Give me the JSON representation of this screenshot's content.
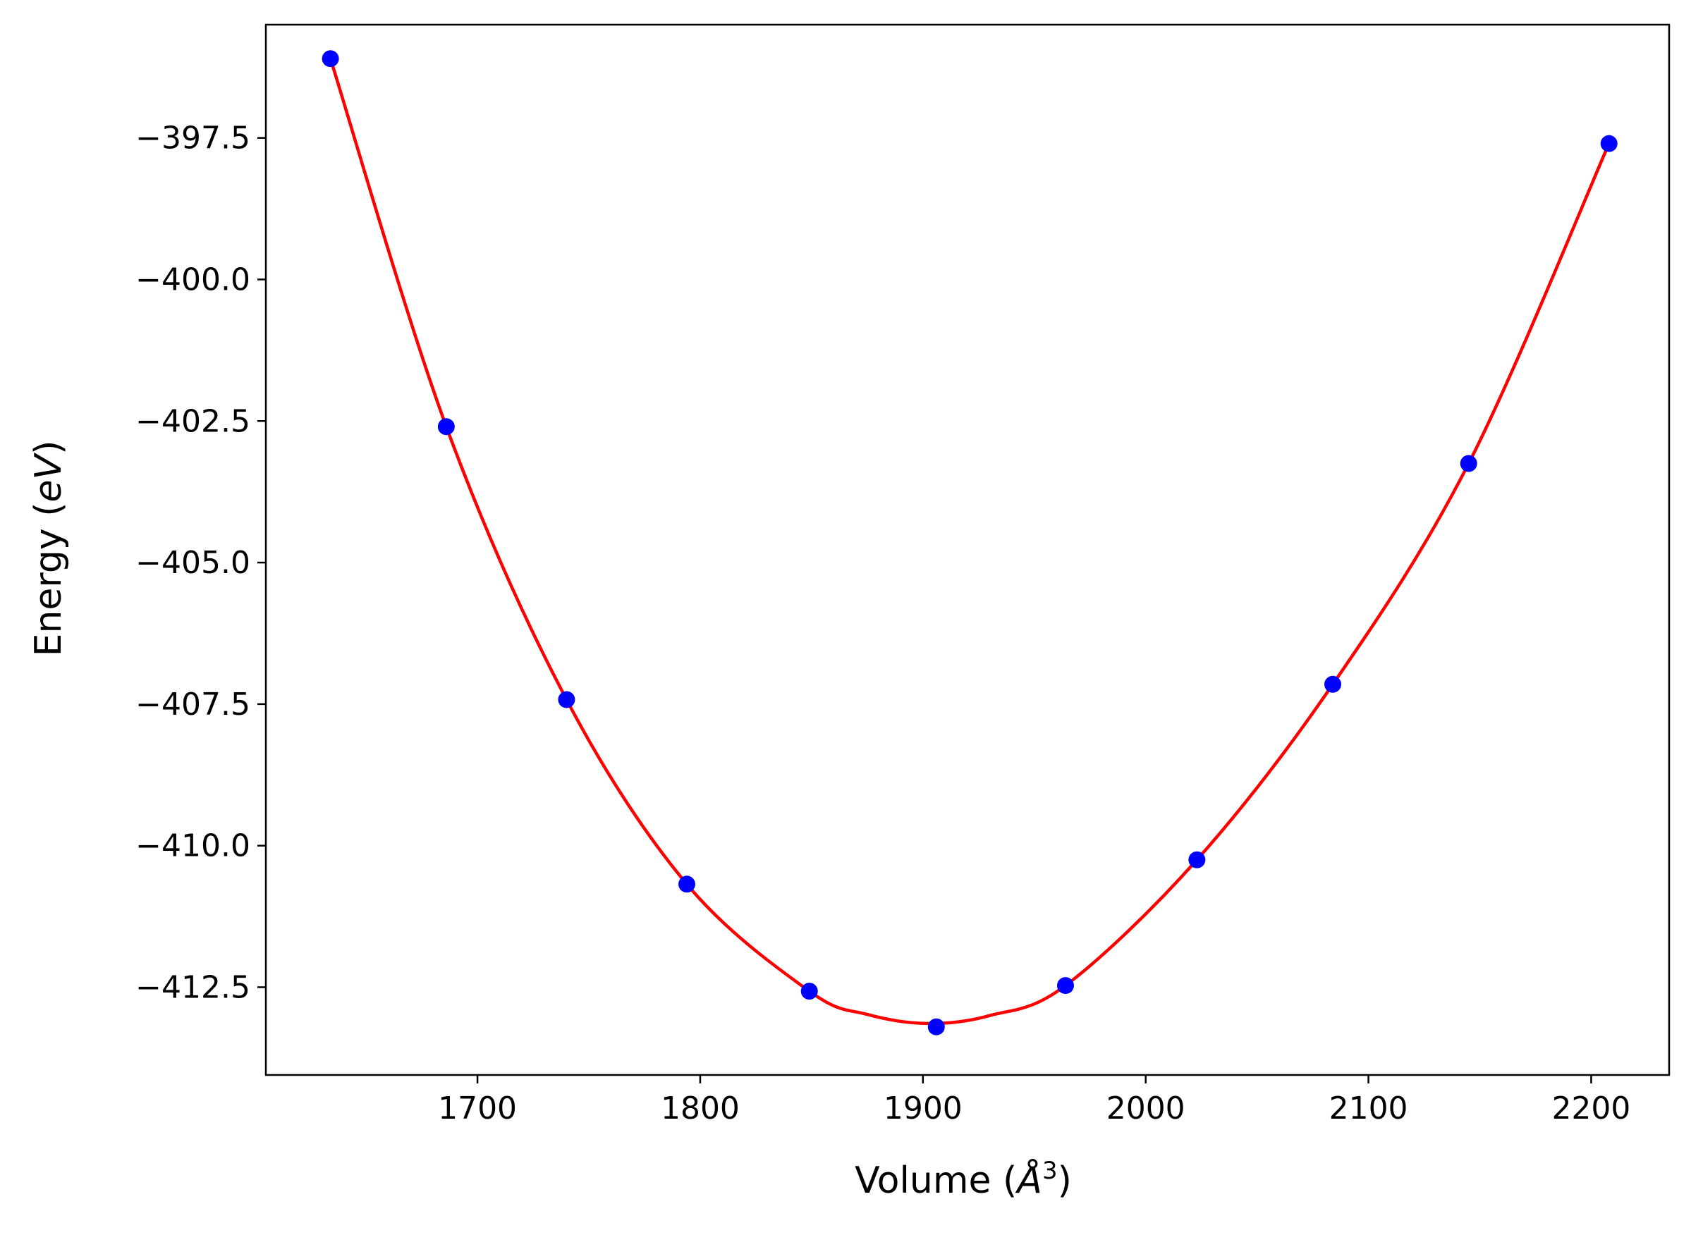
{
  "chart_data": {
    "type": "scatter",
    "title": "",
    "xlabel": "Volume",
    "xlabel_unit": "Å",
    "xlabel_unit_exponent": "3",
    "ylabel": "Energy",
    "ylabel_unit": "eV",
    "xlim": [
      1605,
      2235
    ],
    "ylim": [
      -414.05,
      -395.5
    ],
    "xticks": [
      1700,
      1800,
      1900,
      2000,
      2100,
      2200
    ],
    "xtick_labels": [
      "1700",
      "1800",
      "1900",
      "2000",
      "2100",
      "2200"
    ],
    "yticks": [
      -397.5,
      -400.0,
      -402.5,
      -405.0,
      -407.5,
      -410.0,
      -412.5
    ],
    "ytick_labels": [
      "−397.5",
      "−400.0",
      "−402.5",
      "−405.0",
      "−407.5",
      "−410.0",
      "−412.5"
    ],
    "grid": false,
    "legend": "none",
    "series": [
      {
        "kind": "points",
        "color": "#0000ff",
        "x": [
          1634,
          1686,
          1740,
          1794,
          1849,
          1906,
          1964,
          2023,
          2084,
          2145,
          2208
        ],
        "y": [
          -396.1,
          -402.6,
          -407.42,
          -410.68,
          -412.57,
          -413.2,
          -412.47,
          -410.25,
          -407.15,
          -403.25,
          -397.6
        ]
      },
      {
        "kind": "fit-curve",
        "color": "#ff0000",
        "x": [
          1634,
          1686,
          1740,
          1794,
          1849,
          1875,
          1902,
          1930,
          1964,
          2023,
          2084,
          2145,
          2208
        ],
        "y": [
          -396.1,
          -402.6,
          -407.42,
          -410.68,
          -412.57,
          -412.98,
          -413.14,
          -413.0,
          -412.47,
          -410.25,
          -407.15,
          -403.25,
          -397.6
        ]
      }
    ]
  }
}
